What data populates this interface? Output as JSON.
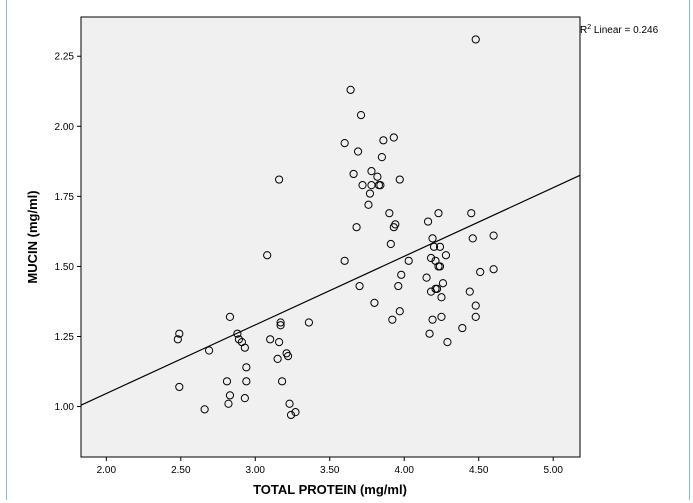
{
  "chart_data": {
    "type": "scatter",
    "title": "",
    "xlabel": "TOTAL PROTEIN (mg/ml)",
    "ylabel": "MUCIN (mg/ml)",
    "xlim": [
      1.83,
      5.18
    ],
    "ylim": [
      0.82,
      2.39
    ],
    "x_ticks": [
      2.0,
      2.5,
      3.0,
      3.5,
      4.0,
      4.5,
      5.0
    ],
    "x_tick_labels": [
      "2.00",
      "2.50",
      "3.00",
      "3.50",
      "4.00",
      "4.50",
      "5.00"
    ],
    "y_ticks": [
      1.0,
      1.25,
      1.5,
      1.75,
      2.0,
      2.25
    ],
    "y_tick_labels": [
      "1.00",
      "1.25",
      "1.50",
      "1.75",
      "2.00",
      "2.25"
    ],
    "grid": false,
    "colors": {
      "plot_background": "#f0f0f0",
      "marker_edge": "#000000",
      "line": "#000000",
      "frame_border": "#8eb8de"
    },
    "fit_line": {
      "label_prefix": "R",
      "label_superscript": "2",
      "label_suffix": " Linear = 0.246",
      "endpoints": [
        [
          1.83,
          1.005
        ],
        [
          5.18,
          1.825
        ]
      ]
    },
    "points": [
      [
        2.48,
        1.24
      ],
      [
        2.49,
        1.26
      ],
      [
        2.49,
        1.07
      ],
      [
        2.66,
        0.99
      ],
      [
        2.69,
        1.2
      ],
      [
        2.81,
        1.09
      ],
      [
        2.82,
        1.01
      ],
      [
        2.83,
        1.04
      ],
      [
        2.83,
        1.32
      ],
      [
        2.88,
        1.26
      ],
      [
        2.89,
        1.24
      ],
      [
        2.91,
        1.23
      ],
      [
        2.93,
        1.03
      ],
      [
        2.93,
        1.21
      ],
      [
        2.94,
        1.14
      ],
      [
        2.94,
        1.09
      ],
      [
        3.08,
        1.54
      ],
      [
        3.1,
        1.24
      ],
      [
        3.15,
        1.17
      ],
      [
        3.16,
        1.23
      ],
      [
        3.16,
        1.81
      ],
      [
        3.17,
        1.3
      ],
      [
        3.17,
        1.29
      ],
      [
        3.18,
        1.09
      ],
      [
        3.21,
        1.19
      ],
      [
        3.22,
        1.18
      ],
      [
        3.23,
        1.01
      ],
      [
        3.24,
        0.97
      ],
      [
        3.27,
        0.98
      ],
      [
        3.36,
        1.3
      ],
      [
        3.6,
        1.52
      ],
      [
        3.6,
        1.94
      ],
      [
        3.64,
        2.13
      ],
      [
        3.66,
        1.83
      ],
      [
        3.68,
        1.64
      ],
      [
        3.69,
        1.91
      ],
      [
        3.7,
        1.43
      ],
      [
        3.71,
        2.04
      ],
      [
        3.72,
        1.79
      ],
      [
        3.76,
        1.72
      ],
      [
        3.77,
        1.76
      ],
      [
        3.78,
        1.79
      ],
      [
        3.78,
        1.84
      ],
      [
        3.8,
        1.37
      ],
      [
        3.82,
        1.82
      ],
      [
        3.83,
        1.79
      ],
      [
        3.84,
        1.79
      ],
      [
        3.85,
        1.89
      ],
      [
        3.86,
        1.95
      ],
      [
        3.9,
        1.69
      ],
      [
        3.91,
        1.58
      ],
      [
        3.92,
        1.31
      ],
      [
        3.93,
        1.64
      ],
      [
        3.93,
        1.96
      ],
      [
        3.94,
        1.65
      ],
      [
        3.96,
        1.43
      ],
      [
        3.97,
        1.81
      ],
      [
        3.97,
        1.34
      ],
      [
        3.98,
        1.47
      ],
      [
        4.03,
        1.52
      ],
      [
        4.15,
        1.46
      ],
      [
        4.16,
        1.66
      ],
      [
        4.17,
        1.26
      ],
      [
        4.18,
        1.41
      ],
      [
        4.18,
        1.53
      ],
      [
        4.19,
        1.6
      ],
      [
        4.19,
        1.31
      ],
      [
        4.2,
        1.57
      ],
      [
        4.21,
        1.42
      ],
      [
        4.21,
        1.52
      ],
      [
        4.22,
        1.42
      ],
      [
        4.23,
        1.5
      ],
      [
        4.23,
        1.69
      ],
      [
        4.24,
        1.5
      ],
      [
        4.24,
        1.57
      ],
      [
        4.25,
        1.39
      ],
      [
        4.25,
        1.32
      ],
      [
        4.26,
        1.44
      ],
      [
        4.28,
        1.54
      ],
      [
        4.29,
        1.23
      ],
      [
        4.39,
        1.28
      ],
      [
        4.44,
        1.41
      ],
      [
        4.45,
        1.69
      ],
      [
        4.46,
        1.6
      ],
      [
        4.48,
        2.31
      ],
      [
        4.48,
        1.36
      ],
      [
        4.48,
        1.32
      ],
      [
        4.51,
        1.48
      ],
      [
        4.6,
        1.61
      ],
      [
        4.6,
        1.49
      ]
    ]
  }
}
